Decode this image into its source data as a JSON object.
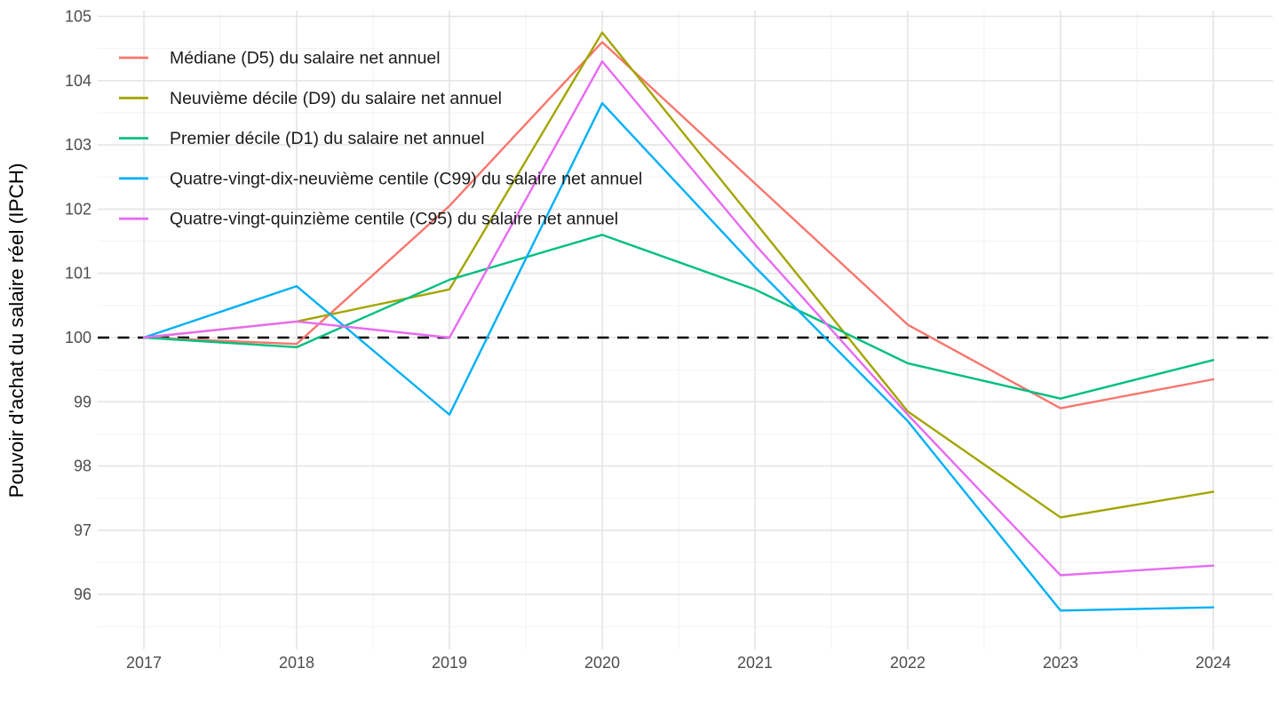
{
  "chart_data": {
    "type": "line",
    "title": "",
    "xlabel": "",
    "ylabel": "Pouvoir d'achat du salaire réel (IPCH)",
    "x": [
      2017,
      2018,
      2019,
      2020,
      2021,
      2022,
      2023,
      2024
    ],
    "x_tick_labels": [
      "2017",
      "2018",
      "2019",
      "2020",
      "2021",
      "2022",
      "2023",
      "2024"
    ],
    "y_ticks": [
      96,
      97,
      98,
      99,
      100,
      101,
      102,
      103,
      104,
      105
    ],
    "ylim": [
      95.2,
      105.1
    ],
    "xlim": [
      2016.7,
      2024.4
    ],
    "grid": "major+minor",
    "grid_color_major": "#E5E5E5",
    "grid_color_minor": "#F2F2F2",
    "axis_text_color": "#4D4D4D",
    "legend_position": "inside-top-left",
    "legend_text_color": "#1a1a1a",
    "reference_line": {
      "y": 100,
      "style": "dashed",
      "color": "#000000"
    },
    "series": [
      {
        "code": "D5",
        "name": "Médiane (D5) du salaire net annuel",
        "color": "#F8766D",
        "values": [
          100,
          99.9,
          102.05,
          104.6,
          102.4,
          100.2,
          98.9,
          99.35
        ]
      },
      {
        "code": "D9",
        "name": "Neuvième décile (D9) du salaire net annuel",
        "color": "#A3A500",
        "values": [
          100,
          100.25,
          100.75,
          104.75,
          101.8,
          98.85,
          97.2,
          97.6
        ]
      },
      {
        "code": "D1",
        "name": "Premier décile (D1) du salaire net annuel",
        "color": "#00BF7D",
        "values": [
          100,
          99.85,
          100.9,
          101.6,
          100.75,
          99.6,
          99.05,
          99.65
        ]
      },
      {
        "code": "C99",
        "name": "Quatre-vingt-dix-neuvième centile (C99) du salaire net annuel",
        "color": "#00B0F6",
        "values": [
          100,
          100.8,
          98.8,
          103.65,
          101.1,
          98.7,
          95.75,
          95.8
        ]
      },
      {
        "code": "C95",
        "name": "Quatre-vingt-quinzième centile (C95) du salaire net annuel",
        "color": "#E76BF3",
        "values": [
          100,
          100.25,
          100,
          104.3,
          101.45,
          98.8,
          96.3,
          96.45
        ]
      }
    ]
  }
}
